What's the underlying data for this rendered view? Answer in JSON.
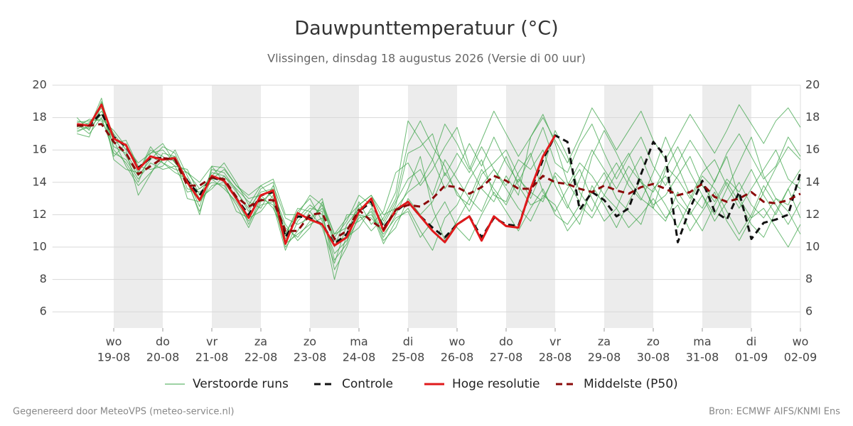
{
  "chart_data": {
    "type": "line",
    "title": "Dauwpunttemperatuur (°C)",
    "subtitle": "Vlissingen, dinsdag 18 augustus 2026 (Versie di 00 uur)",
    "footer_left": "Gegenereerd door MeteoVPS (meteo-service.nl)",
    "footer_right": "Bron: ECMWF AIFS/KNMI Ens",
    "x": [
      -0.75,
      -0.5,
      -0.25,
      0,
      0.25,
      0.5,
      0.75,
      1,
      1.25,
      1.5,
      1.75,
      2,
      2.25,
      2.5,
      2.75,
      3,
      3.25,
      3.5,
      3.75,
      4,
      4.25,
      4.5,
      4.75,
      5,
      5.25,
      5.5,
      5.75,
      6,
      6.25,
      6.5,
      6.75,
      7,
      7.25,
      7.5,
      7.75,
      8,
      8.25,
      8.5,
      8.75,
      9,
      9.25,
      9.5,
      9.75,
      10,
      10.25,
      10.5,
      10.75,
      11,
      11.25,
      11.5,
      11.75,
      12,
      12.25,
      12.5,
      12.75,
      13,
      13.25,
      13.5,
      13.75,
      14
    ],
    "xlim": [
      -1.25,
      14
    ],
    "xticks": [
      {
        "value": 0,
        "label": "wo",
        "date": "19-08"
      },
      {
        "value": 1,
        "label": "do",
        "date": "20-08"
      },
      {
        "value": 2,
        "label": "vr",
        "date": "21-08"
      },
      {
        "value": 3,
        "label": "za",
        "date": "22-08"
      },
      {
        "value": 4,
        "label": "zo",
        "date": "23-08"
      },
      {
        "value": 5,
        "label": "ma",
        "date": "24-08"
      },
      {
        "value": 6,
        "label": "di",
        "date": "25-08"
      },
      {
        "value": 7,
        "label": "wo",
        "date": "26-08"
      },
      {
        "value": 8,
        "label": "do",
        "date": "27-08"
      },
      {
        "value": 9,
        "label": "vr",
        "date": "28-08"
      },
      {
        "value": 10,
        "label": "za",
        "date": "29-08"
      },
      {
        "value": 11,
        "label": "zo",
        "date": "30-08"
      },
      {
        "value": 12,
        "label": "ma",
        "date": "31-08"
      },
      {
        "value": 13,
        "label": "di",
        "date": "01-09"
      },
      {
        "value": 14,
        "label": "wo",
        "date": "02-09"
      }
    ],
    "ylim": [
      5,
      20
    ],
    "yticks": [
      6,
      8,
      10,
      12,
      14,
      16,
      18,
      20
    ],
    "grid": true,
    "series": [
      {
        "name": "Verstoorde runs",
        "color": "#3ea44a",
        "members": [
          [
            17.2,
            17.4,
            19.2,
            16.0,
            15.2,
            14.0,
            15.8,
            16.0,
            15.2,
            14.2,
            12.5,
            14.8,
            14.6,
            13.5,
            12.2,
            13.6,
            14.0,
            10.5,
            11.8,
            12.6,
            12.0,
            9.2,
            10.2,
            12.6,
            13.2,
            11.6,
            13.0,
            16.4,
            17.8,
            16.2,
            15.0,
            13.2,
            12.6,
            14.5,
            15.2,
            16.0,
            14.4,
            13.0,
            14.8,
            17.2,
            15.6,
            13.4,
            12.2,
            14.0,
            15.2,
            13.8,
            12.9,
            14.6,
            16.8,
            15.0,
            13.2,
            12.4,
            14.1,
            15.6,
            13.0,
            11.8,
            13.4,
            14.9,
            16.2,
            15.4
          ],
          [
            17.8,
            17.6,
            18.4,
            17.0,
            16.0,
            13.2,
            14.5,
            15.8,
            15.6,
            13.6,
            13.4,
            14.0,
            13.8,
            12.6,
            11.2,
            12.8,
            13.4,
            11.4,
            10.4,
            11.2,
            12.8,
            10.8,
            11.2,
            11.6,
            12.2,
            10.2,
            11.6,
            12.4,
            11.0,
            9.8,
            11.8,
            12.6,
            14.2,
            15.4,
            13.2,
            12.8,
            14.6,
            15.8,
            13.4,
            12.2,
            13.6,
            14.8,
            13.0,
            11.6,
            12.4,
            14.2,
            15.6,
            13.8,
            12.6,
            11.2,
            12.8,
            14.4,
            13.6,
            12.2,
            10.8,
            12.0,
            13.8,
            12.6,
            11.4,
            12.8
          ],
          [
            17.0,
            16.8,
            18.8,
            15.4,
            14.8,
            14.6,
            16.2,
            15.2,
            14.8,
            14.6,
            14.0,
            15.0,
            14.9,
            13.8,
            13.0,
            13.2,
            12.4,
            10.8,
            12.2,
            13.0,
            11.6,
            8.0,
            10.8,
            12.8,
            11.4,
            12.2,
            14.6,
            15.2,
            13.8,
            14.8,
            16.2,
            17.4,
            15.0,
            13.6,
            12.8,
            14.4,
            13.2,
            16.8,
            18.2,
            16.4,
            14.0,
            12.8,
            15.6,
            17.2,
            15.8,
            14.2,
            13.0,
            12.4,
            14.8,
            16.2,
            14.6,
            13.2,
            12.0,
            13.6,
            15.2,
            16.8,
            14.4,
            13.0,
            12.6,
            14.2
          ],
          [
            17.4,
            17.9,
            17.8,
            16.4,
            16.6,
            15.0,
            14.8,
            15.0,
            16.0,
            14.4,
            13.0,
            13.6,
            14.4,
            13.6,
            12.8,
            12.4,
            13.8,
            11.8,
            11.4,
            11.8,
            12.4,
            10.6,
            11.6,
            13.2,
            12.6,
            10.6,
            12.0,
            13.6,
            15.6,
            12.4,
            10.4,
            11.6,
            13.0,
            12.2,
            14.0,
            15.6,
            13.8,
            12.6,
            13.0,
            14.4,
            12.6,
            11.4,
            13.8,
            12.6,
            11.2,
            12.8,
            14.2,
            12.4,
            11.6,
            13.4,
            12.2,
            11.0,
            12.6,
            14.0,
            12.8,
            11.4,
            10.6,
            12.2,
            13.6,
            11.8
          ],
          [
            18.0,
            17.2,
            19.0,
            16.8,
            15.6,
            14.4,
            15.4,
            16.2,
            15.8,
            14.0,
            12.2,
            14.4,
            15.2,
            14.0,
            12.6,
            13.8,
            13.0,
            10.0,
            11.0,
            12.2,
            13.0,
            10.0,
            12.0,
            12.0,
            11.0,
            11.8,
            13.4,
            17.8,
            16.6,
            15.4,
            13.6,
            14.8,
            16.4,
            15.0,
            16.8,
            15.2,
            14.0,
            15.6,
            17.4,
            15.2,
            14.6,
            16.4,
            17.6,
            15.8,
            14.2,
            15.6,
            16.8,
            15.0,
            13.8,
            15.2,
            16.6,
            15.4,
            14.0,
            15.8,
            17.0,
            15.6,
            14.2,
            15.0,
            16.8,
            15.6
          ],
          [
            17.6,
            17.0,
            18.0,
            15.8,
            15.4,
            14.2,
            15.2,
            14.8,
            15.0,
            13.4,
            13.6,
            14.2,
            13.6,
            12.8,
            11.6,
            12.6,
            12.8,
            10.2,
            10.8,
            11.4,
            11.8,
            9.6,
            10.4,
            11.8,
            12.0,
            10.8,
            11.8,
            12.2,
            10.6,
            11.6,
            12.8,
            11.2,
            10.4,
            12.0,
            13.4,
            12.2,
            11.0,
            12.4,
            13.6,
            12.0,
            11.4,
            12.6,
            11.8,
            13.2,
            12.4,
            11.2,
            12.0,
            13.0,
            11.8,
            12.6,
            11.0,
            12.2,
            13.4,
            11.6,
            10.4,
            11.8,
            12.4,
            11.2,
            10.0,
            11.4
          ],
          [
            17.3,
            17.7,
            18.6,
            16.2,
            15.8,
            14.6,
            16.0,
            15.6,
            15.0,
            14.8,
            13.2,
            14.6,
            14.4,
            13.4,
            12.4,
            13.4,
            13.6,
            10.8,
            12.4,
            12.2,
            11.2,
            9.0,
            11.4,
            12.4,
            12.8,
            11.4,
            12.8,
            14.2,
            14.8,
            13.2,
            15.4,
            14.2,
            13.0,
            14.8,
            13.6,
            12.6,
            14.2,
            13.4,
            12.8,
            14.6,
            13.8,
            15.2,
            14.4,
            13.2,
            14.6,
            15.8,
            14.0,
            13.4,
            15.0,
            14.2,
            13.0,
            14.6,
            15.4,
            13.8,
            12.4,
            13.6,
            14.8,
            16.0,
            14.2,
            13.6
          ],
          [
            17.5,
            17.3,
            18.2,
            16.6,
            15.0,
            13.8,
            14.6,
            15.4,
            15.6,
            13.0,
            12.8,
            13.8,
            14.0,
            12.2,
            11.8,
            12.2,
            13.2,
            11.2,
            10.6,
            11.6,
            12.6,
            10.4,
            10.6,
            11.2,
            12.4,
            10.4,
            11.2,
            13.0,
            12.0,
            12.8,
            14.6,
            13.4,
            12.2,
            13.8,
            14.8,
            13.6,
            12.4,
            11.6,
            13.2,
            12.6,
            11.0,
            12.0,
            13.4,
            14.6,
            13.0,
            12.2,
            11.4,
            13.6,
            14.4,
            12.8,
            12.0,
            13.2,
            11.6,
            12.8,
            14.0,
            12.6,
            11.8,
            13.0,
            12.2,
            10.8
          ],
          [
            17.1,
            17.5,
            18.9,
            15.6,
            16.4,
            14.8,
            15.6,
            15.2,
            14.6,
            14.2,
            12.0,
            15.0,
            14.0,
            13.2,
            11.4,
            13.0,
            12.6,
            9.8,
            11.6,
            12.4,
            12.2,
            8.6,
            10.0,
            12.0,
            11.8,
            11.0,
            12.6,
            15.8,
            16.2,
            17.0,
            14.4,
            15.8,
            14.6,
            16.2,
            14.8,
            13.8,
            15.4,
            14.8,
            16.0,
            13.8,
            12.4,
            14.2,
            16.0,
            14.8,
            13.6,
            15.0,
            14.0,
            12.6,
            13.2,
            14.4,
            15.6,
            13.8,
            12.8,
            14.2,
            13.4,
            14.8,
            13.2,
            12.0,
            13.6,
            14.8
          ],
          [
            17.7,
            17.8,
            17.9,
            17.2,
            16.2,
            15.2,
            15.8,
            16.4,
            15.2,
            14.6,
            13.6,
            14.2,
            14.8,
            13.8,
            13.2,
            13.8,
            14.2,
            12.0,
            12.0,
            13.2,
            12.6,
            10.8,
            11.8,
            12.6,
            13.2,
            12.0,
            12.4,
            13.4,
            14.0,
            15.4,
            17.6,
            16.4,
            14.8,
            16.6,
            18.4,
            17.0,
            15.6,
            16.8,
            18.0,
            16.6,
            15.2,
            16.8,
            18.6,
            17.4,
            16.0,
            17.2,
            18.4,
            16.6,
            15.4,
            16.8,
            18.2,
            17.0,
            15.8,
            17.2,
            18.8,
            17.6,
            16.4,
            17.8,
            18.6,
            17.4
          ]
        ]
      },
      {
        "name": "Controle",
        "color": "#111111",
        "dashed": true,
        "values": [
          17.5,
          17.5,
          18.3,
          16.8,
          16.2,
          14.9,
          15.5,
          15.5,
          15.4,
          14.1,
          13.2,
          14.3,
          14.1,
          13.0,
          12.0,
          13.2,
          13.4,
          10.6,
          11.9,
          11.8,
          11.4,
          10.2,
          10.8,
          12.2,
          12.8,
          11.2,
          12.2,
          12.8,
          11.9,
          11.2,
          10.6,
          11.4,
          11.9,
          10.6,
          11.8,
          11.4,
          11.3,
          13.5,
          15.4,
          16.9,
          16.5,
          12.3,
          13.4,
          12.9,
          11.9,
          12.4,
          14.5,
          16.5,
          15.6,
          10.3,
          12.4,
          14.1,
          12.2,
          11.7,
          13.4,
          10.5,
          11.5,
          11.7,
          12.0,
          14.6
        ]
      },
      {
        "name": "Hoge resolutie",
        "color": "#e0191b",
        "dashed": false,
        "values": [
          17.6,
          17.5,
          18.8,
          16.7,
          16.3,
          14.8,
          15.6,
          15.4,
          15.5,
          14.0,
          12.9,
          14.4,
          14.1,
          13.0,
          11.8,
          13.2,
          13.5,
          10.2,
          12.1,
          11.7,
          11.4,
          10.1,
          10.6,
          12.2,
          13.0,
          11.0,
          12.3,
          12.8,
          11.9,
          11.0,
          10.3,
          11.4,
          11.9,
          10.4,
          11.9,
          11.3,
          11.2,
          13.6,
          15.6,
          16.9,
          null,
          null,
          null,
          null,
          null,
          null,
          null,
          null,
          null,
          null,
          null,
          null,
          null,
          null,
          null,
          null,
          null,
          null,
          null,
          null
        ]
      },
      {
        "name": "Middelste (P50)",
        "color": "#8b0a0a",
        "dashed": true,
        "values": [
          17.5,
          17.5,
          17.6,
          16.5,
          15.8,
          14.5,
          15.0,
          15.5,
          15.4,
          13.8,
          13.8,
          14.3,
          14.2,
          13.1,
          12.5,
          12.9,
          12.9,
          11.0,
          11.0,
          12.0,
          12.1,
          10.5,
          11.0,
          12.3,
          11.6,
          11.1,
          12.3,
          12.6,
          12.5,
          13.0,
          13.8,
          13.7,
          13.3,
          13.7,
          14.4,
          14.1,
          13.6,
          13.6,
          14.4,
          14.0,
          13.9,
          13.6,
          13.4,
          13.8,
          13.5,
          13.3,
          13.7,
          13.9,
          13.6,
          13.2,
          13.4,
          13.9,
          13.1,
          12.8,
          13.0,
          13.4,
          12.8,
          12.7,
          12.9,
          13.3
        ]
      }
    ]
  }
}
